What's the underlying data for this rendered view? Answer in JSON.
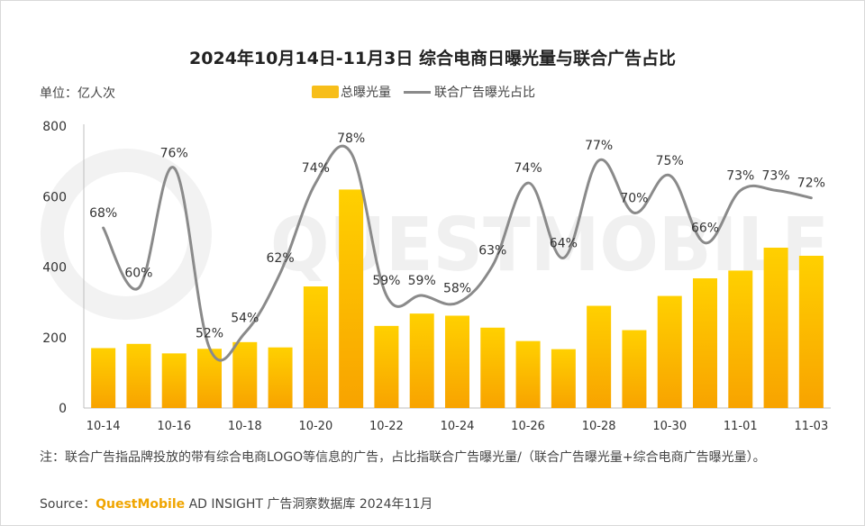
{
  "title": "2024年10月14日-11月3日 综合电商日曝光量与联合广告占比",
  "unit": "单位：亿人次",
  "legend": {
    "bar": "总曝光量",
    "line": "联合广告曝光占比"
  },
  "watermark": "QUESTMOBILE",
  "note": "注：联合广告指品牌投放的带有综合电商LOGO等信息的广告，占比指联合广告曝光量/（联合广告曝光量+综合电商广告曝光量）。",
  "source": {
    "prefix": "Source：",
    "brand": "QuestMobile",
    "rest": " AD INSIGHT 广告洞察数据库 2024年11月"
  },
  "colors": {
    "bar": "#f7be1a",
    "bar_dark": "#f9a800",
    "line": "#8a8a8a"
  },
  "chart_data": {
    "type": "bar",
    "title": "2024年10月14日-11月3日 综合电商日曝光量与联合广告占比",
    "categories": [
      "10-14",
      "10-15",
      "10-16",
      "10-17",
      "10-18",
      "10-19",
      "10-20",
      "10-21",
      "10-22",
      "10-23",
      "10-24",
      "10-25",
      "10-26",
      "10-27",
      "10-28",
      "10-29",
      "10-30",
      "10-31",
      "11-01",
      "11-02",
      "11-03"
    ],
    "x_tick_labels": [
      "10-14",
      "10-16",
      "10-18",
      "10-20",
      "10-22",
      "10-24",
      "10-26",
      "10-28",
      "10-30",
      "11-01",
      "11-03"
    ],
    "ylim": [
      0,
      800
    ],
    "yticks": [
      0,
      200,
      400,
      600,
      800
    ],
    "grid": false,
    "series": [
      {
        "name": "总曝光量",
        "type": "bar",
        "values": [
          170,
          182,
          155,
          168,
          187,
          172,
          345,
          620,
          233,
          268,
          262,
          228,
          190,
          167,
          290,
          221,
          318,
          368,
          390,
          455,
          432
        ]
      },
      {
        "name": "联合广告曝光占比",
        "type": "line",
        "unit": "%",
        "values": [
          68,
          60,
          76,
          52,
          54,
          62,
          74,
          78,
          59,
          59,
          58,
          63,
          74,
          64,
          77,
          70,
          75,
          66,
          73,
          73,
          72
        ],
        "labels": [
          "68%",
          "60%",
          "76%",
          "52%",
          "54%",
          "62%",
          "74%",
          "78%",
          "59%",
          "59%",
          "58%",
          "63%",
          "74%",
          "64%",
          "77%",
          "70%",
          "75%",
          "66%",
          "73%",
          "73%",
          "72%"
        ]
      }
    ]
  }
}
